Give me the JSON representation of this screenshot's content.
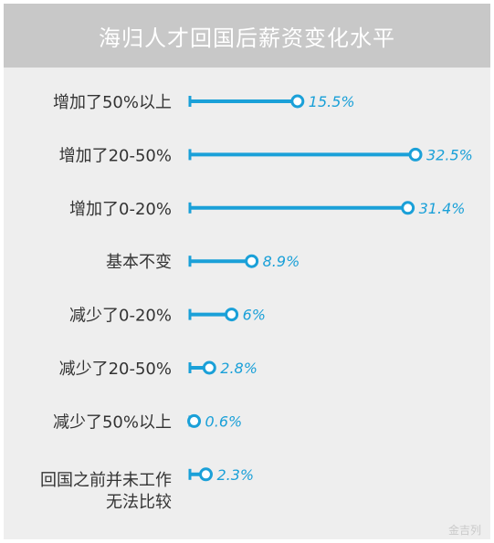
{
  "chart_data": {
    "type": "lollipop",
    "title": "海归人才回国后薪资变化水平",
    "categories": [
      [
        "增加了50%以上"
      ],
      [
        "增加了20-50%"
      ],
      [
        "增加了0-20%"
      ],
      [
        "基本不变"
      ],
      [
        "减少了0-20%"
      ],
      [
        "减少了20-50%"
      ],
      [
        "减少了50%以上"
      ],
      [
        "回国之前并未工作",
        "无法比较"
      ]
    ],
    "values": [
      15.5,
      32.5,
      31.4,
      8.9,
      6,
      2.8,
      0.6,
      2.3
    ],
    "value_labels": [
      "15.5%",
      "32.5%",
      "31.4%",
      "8.9%",
      "6%",
      "2.8%",
      "0.6%",
      "2.3%"
    ],
    "xlim": [
      0,
      32.5
    ],
    "grid": false,
    "color": "#1aa0d8"
  },
  "watermark": "金吉列"
}
